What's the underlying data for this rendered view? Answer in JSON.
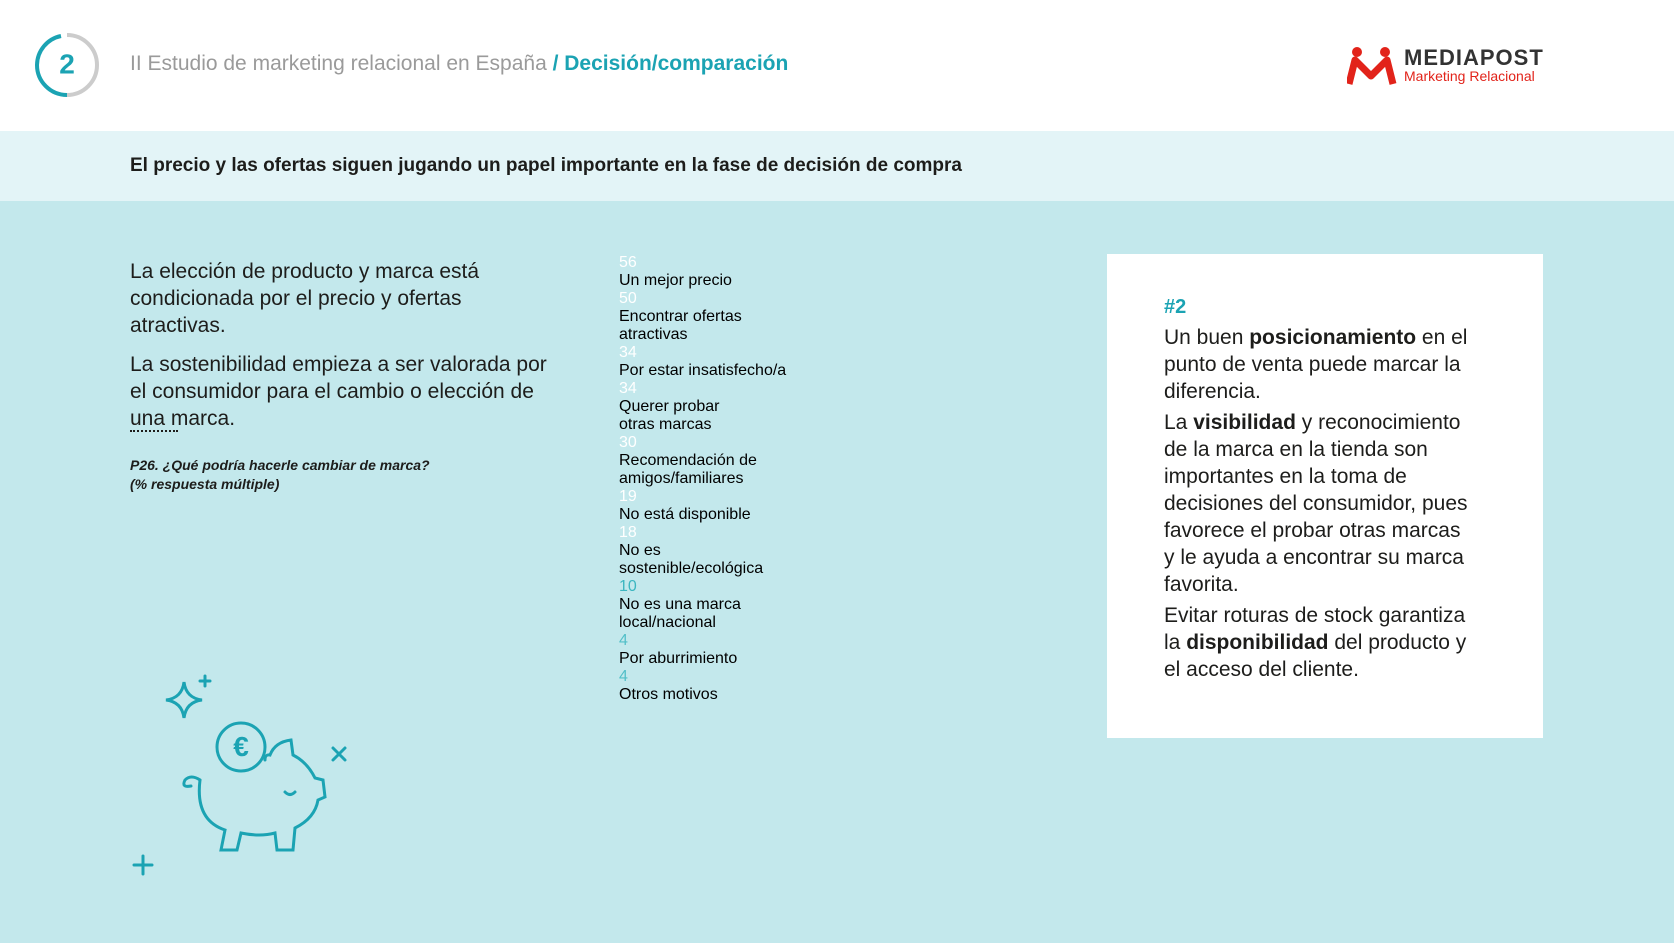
{
  "header": {
    "section": "2",
    "title": "II Estudio de marketing relacional en España",
    "subtitle": "/ Decisión/comparación",
    "logo": {
      "brand": "MEDIAPOST",
      "tagline": "Marketing Relacional"
    }
  },
  "banner": "El precio y las ofertas siguen jugando un papel importante en la fase de decisión de compra",
  "intro": [
    "La elección de producto y marca está condicionada por el precio y ofertas atractivas.",
    "La sostenibilidad empieza a ser valorada por el consumidor para el cambio o elección de una marca."
  ],
  "question": [
    "P26. ¿Qué podría hacerle cambiar de marca?",
    "(% respuesta múltiple)"
  ],
  "chart_data": {
    "type": "hbar",
    "categories": [
      "Un mejor precio",
      "Encontrar ofertas atractivas",
      "Por estar insatisfecho/a",
      "Querer probar otras marcas",
      "Recomendación de amigos/familiares",
      "No está disponible",
      "No es sostenible/ecológica",
      "No es una marca local/nacional",
      "Por aburrimiento",
      "Otros motivos"
    ],
    "values": [
      56,
      50,
      34,
      34,
      30,
      19,
      18,
      10,
      4,
      4
    ],
    "colors": [
      "#12a4b1",
      "#12a4b1",
      "#12a4b1",
      "#12a4b1",
      "#26abb7",
      "#33b1bc",
      "#33b1bc",
      "#3cb6c0",
      "#52bfc8",
      "#52bfc8"
    ]
  },
  "card": {
    "tag": "#2",
    "paragraphs": [
      [
        {
          "text": "Un buen "
        },
        {
          "text": "posicionamiento",
          "bold": true
        },
        {
          "text": " en el punto de venta puede marcar la diferencia."
        }
      ],
      [
        {
          "text": "La "
        },
        {
          "text": "visibilidad",
          "bold": true
        },
        {
          "text": " y reconocimiento de la marca en la tienda son importantes en la toma de decisiones del consumidor, pues favorece el probar otras marcas y le ayuda a encontrar su marca favorita."
        }
      ],
      [
        {
          "text": "Evitar roturas de stock garantiza la "
        },
        {
          "text": "disponibilidad",
          "bold": true
        },
        {
          "text": " del producto y el acceso del cliente."
        }
      ]
    ]
  }
}
